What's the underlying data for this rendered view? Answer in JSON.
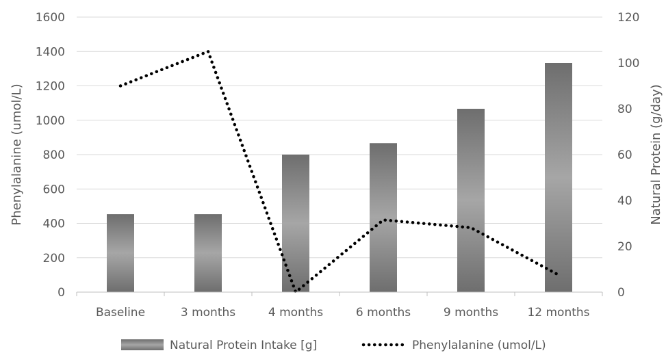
{
  "chart_data": {
    "type": "bar",
    "categories": [
      "Baseline",
      "3 months",
      "4 months",
      "6 months",
      "9 months",
      "12 months"
    ],
    "series": [
      {
        "name": "Natural Protein Intake [g]",
        "type": "bar",
        "axis": "right",
        "values": [
          34,
          34,
          60,
          65,
          80,
          100
        ],
        "color": "#808080"
      },
      {
        "name": "Phenylalanine (umol/L)",
        "type": "line",
        "style": "dotted",
        "axis": "left",
        "values": [
          1200,
          1400,
          0,
          420,
          375,
          100
        ],
        "color": "#000000"
      }
    ],
    "ylabel": "Phenylalanine (umol/L)",
    "ylabel_right": "Natural Protein (g/day)",
    "ylim": [
      0,
      1600
    ],
    "ylim_right": [
      0,
      120
    ],
    "yticks": [
      "0",
      "200",
      "400",
      "600",
      "800",
      "1000",
      "1200",
      "1400",
      "1600"
    ],
    "yticks_right": [
      "0",
      "20",
      "40",
      "60",
      "80",
      "100",
      "120"
    ],
    "grid": true,
    "legend": "bottom"
  }
}
